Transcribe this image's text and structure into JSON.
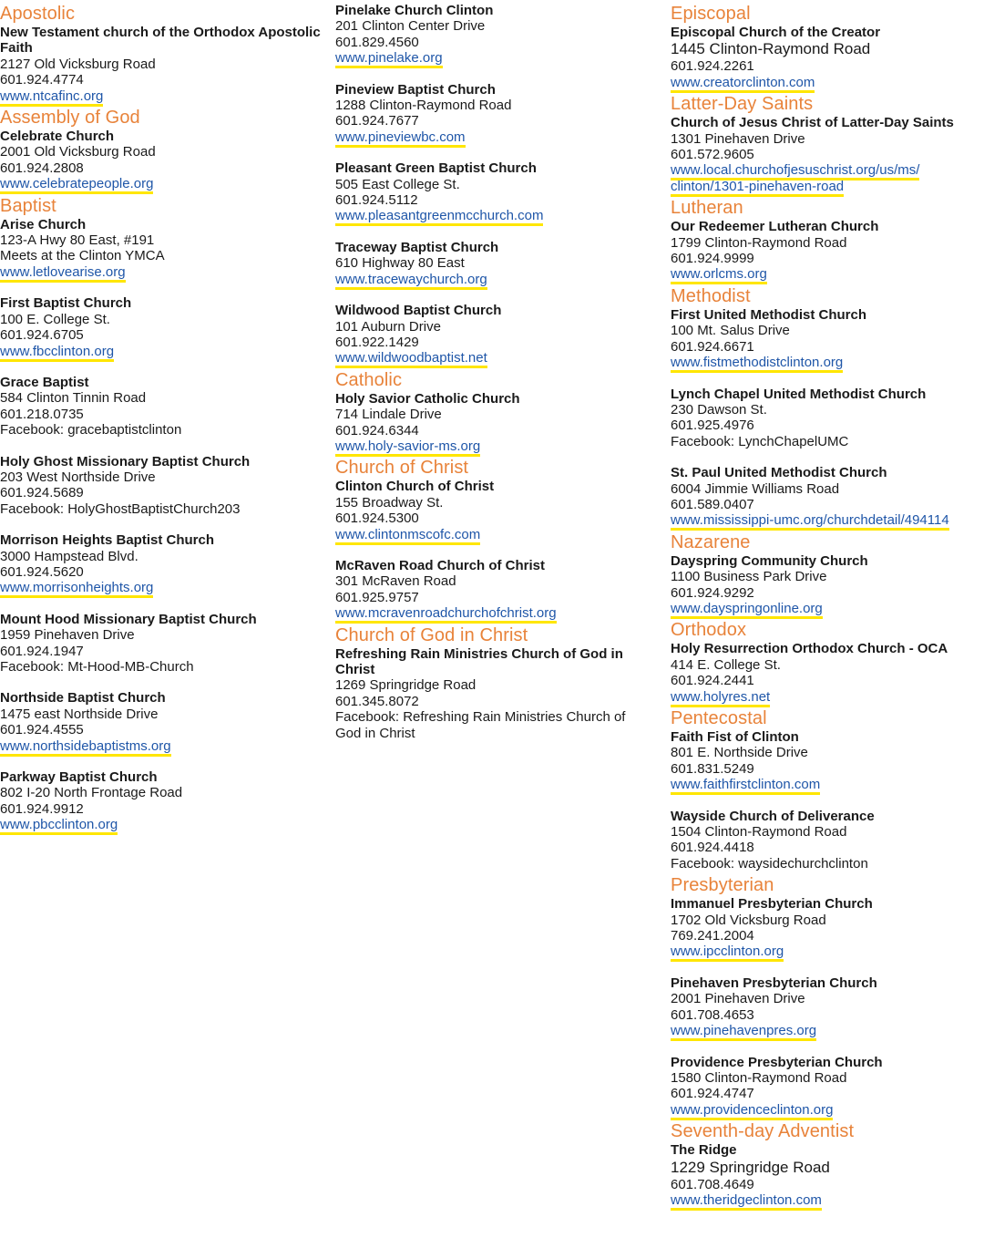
{
  "columns": [
    {
      "sections": [
        {
          "denomination": "Apostolic",
          "churches": [
            {
              "name": "New Testament church of the Orthodox Apostolic Faith",
              "lines": [
                "2127 Old Vicksburg Road",
                "601.924.4774"
              ],
              "link": "www.ntcafinc.org"
            }
          ]
        },
        {
          "denomination": "Assembly of God",
          "churches": [
            {
              "name": "Celebrate Church",
              "lines": [
                "2001 Old Vicksburg Road",
                "601.924.2808"
              ],
              "link": "www.celebratepeople.org"
            }
          ]
        },
        {
          "denomination": "Baptist",
          "churches": [
            {
              "name": "Arise Church",
              "lines": [
                "123-A Hwy 80 East, #191",
                "Meets at the Clinton YMCA"
              ],
              "link": "www.letlovearise.org"
            },
            {
              "name": "First Baptist Church",
              "lines": [
                "100 E. College St.",
                "601.924.6705"
              ],
              "link": "www.fbcclinton.org"
            },
            {
              "name": "Grace Baptist",
              "lines": [
                "584 Clinton Tinnin Road",
                "601.218.0735",
                "Facebook: gracebaptistclinton"
              ],
              "link": ""
            },
            {
              "name": "Holy Ghost Missionary Baptist Church",
              "lines": [
                "203 West Northside Drive",
                "601.924.5689",
                "Facebook:  HolyGhostBaptistChurch203"
              ],
              "link": ""
            },
            {
              "name": "Morrison Heights Baptist Church",
              "lines": [
                "3000 Hampstead Blvd.",
                "601.924.5620"
              ],
              "link": "www.morrisonheights.org"
            },
            {
              "name": "Mount Hood Missionary Baptist Church",
              "lines": [
                "1959 Pinehaven Drive",
                "601.924.1947",
                "Facebook:  Mt-Hood-MB-Church"
              ],
              "link": ""
            },
            {
              "name": "Northside Baptist Church",
              "lines": [
                "1475 east Northside Drive",
                "601.924.4555"
              ],
              "link": "www.northsidebaptistms.org"
            },
            {
              "name": "Parkway Baptist Church",
              "lines": [
                "802 I-20 North Frontage Road",
                "601.924.9912"
              ],
              "link": "www.pbcclinton.org"
            }
          ]
        }
      ]
    },
    {
      "sections": [
        {
          "denomination": "",
          "churches": [
            {
              "name": "Pinelake Church Clinton",
              "lines": [
                "201 Clinton Center Drive",
                "601.829.4560"
              ],
              "link": "www.pinelake.org"
            },
            {
              "name": "Pineview Baptist Church",
              "lines": [
                "1288 Clinton-Raymond Road",
                "601.924.7677"
              ],
              "link": "www.pineviewbc.com"
            },
            {
              "name": "Pleasant Green Baptist Church",
              "lines": [
                "505 East College St.",
                "601.924.5112"
              ],
              "link": "www.pleasantgreenmcchurch.com"
            },
            {
              "name": "Traceway Baptist Church",
              "lines": [
                "610 Highway 80 East"
              ],
              "link": "www.tracewaychurch.org"
            },
            {
              "name": "Wildwood Baptist Church",
              "lines": [
                "101 Auburn Drive",
                "601.922.1429"
              ],
              "link": "www.wildwoodbaptist.net"
            }
          ]
        },
        {
          "denomination": "Catholic",
          "churches": [
            {
              "name": "Holy Savior Catholic Church",
              "lines": [
                "714 Lindale Drive",
                "601.924.6344"
              ],
              "link": "www.holy-savior-ms.org"
            }
          ]
        },
        {
          "denomination": "Church of Christ",
          "churches": [
            {
              "name": "Clinton Church of Christ",
              "lines": [
                "155 Broadway St.",
                "601.924.5300"
              ],
              "link": "www.clintonmscofc.com"
            },
            {
              "name": "McRaven Road Church of Christ",
              "lines": [
                "301 McRaven Road",
                "601.925.9757"
              ],
              "link": "www.mcravenroadchurchofchrist.org"
            }
          ]
        },
        {
          "denomination": "Church of God in Christ",
          "churches": [
            {
              "name": "Refreshing Rain Ministries Church of God in Christ",
              "lines": [
                "1269 Springridge Road",
                "601.345.8072",
                "Facebook: Refreshing Rain Ministries Church of God in Christ"
              ],
              "link": ""
            }
          ]
        }
      ]
    },
    {
      "sections": [
        {
          "denomination": "Episcopal",
          "churches": [
            {
              "name": "Episcopal Church of the Creator",
              "lines": [
                "1445 Clinton-Raymond Road",
                "601.924.2261"
              ],
              "big_first": true,
              "link": "www.creatorclinton.com"
            }
          ]
        },
        {
          "denomination": "Latter-Day Saints",
          "churches": [
            {
              "name": "Church of Jesus Christ of Latter-Day Saints",
              "lines": [
                "1301 Pinehaven Drive",
                "601.572.9605"
              ],
              "link": "www.local.churchofjesuschrist.org/us/ms/ clinton/1301-pinehaven-road"
            }
          ]
        },
        {
          "denomination": "Lutheran",
          "churches": [
            {
              "name": "Our Redeemer Lutheran Church",
              "lines": [
                "1799 Clinton-Raymond Road",
                "601.924.9999"
              ],
              "link": "www.orlcms.org"
            }
          ]
        },
        {
          "denomination": "Methodist",
          "churches": [
            {
              "name": "First United Methodist Church",
              "lines": [
                "100 Mt. Salus Drive",
                "601.924.6671"
              ],
              "link": "www.fistmethodistclinton.org"
            },
            {
              "name": "Lynch Chapel United Methodist Church",
              "lines": [
                "230 Dawson St.",
                "601.925.4976",
                "Facebook:  LynchChapelUMC"
              ],
              "link": ""
            },
            {
              "name": "St. Paul United Methodist Church",
              "lines": [
                "6004 Jimmie Williams Road",
                "601.589.0407"
              ],
              "link": "www.mississippi-umc.org/churchdetail/494114"
            }
          ]
        },
        {
          "denomination": "Nazarene",
          "churches": [
            {
              "name": "Dayspring Community Church",
              "lines": [
                "1100 Business Park Drive",
                "601.924.9292"
              ],
              "link": "www.dayspringonline.org"
            }
          ]
        },
        {
          "denomination": "Orthodox",
          "churches": [
            {
              "name": "Holy Resurrection Orthodox Church - OCA",
              "lines": [
                "414 E. College St.",
                "601.924.2441"
              ],
              "link": "www.holyres.net"
            }
          ]
        },
        {
          "denomination": "Pentecostal",
          "churches": [
            {
              "name": "Faith Fist of Clinton",
              "lines": [
                "801 E. Northside Drive",
                "601.831.5249"
              ],
              "link": "www.faithfirstclinton.com"
            },
            {
              "name": "Wayside Church of Deliverance",
              "lines": [
                "1504 Clinton-Raymond Road",
                "601.924.4418",
                "Facebook:  waysidechurchclinton"
              ],
              "link": ""
            }
          ]
        },
        {
          "denomination": "Presbyterian",
          "churches": [
            {
              "name": "Immanuel Presbyterian Church",
              "lines": [
                "1702 Old Vicksburg Road",
                "769.241.2004"
              ],
              "link": "www.ipcclinton.org"
            },
            {
              "name": "Pinehaven Presbyterian Church",
              "lines": [
                "2001 Pinehaven Drive",
                "601.708.4653"
              ],
              "link": "www.pinehavenpres.org"
            },
            {
              "name": "Providence Presbyterian Church",
              "lines": [
                "1580 Clinton-Raymond Road",
                "601.924.4747"
              ],
              "link": "www.providenceclinton.org"
            }
          ]
        },
        {
          "denomination": "Seventh-day Adventist",
          "churches": [
            {
              "name": "The Ridge",
              "lines": [
                "1229 Springridge Road",
                "601.708.4649"
              ],
              "big_first": true,
              "link": "www.theridgeclinton.com"
            }
          ]
        }
      ]
    }
  ],
  "colors": {
    "denomination": "#e8833a",
    "link": "#1f56a8",
    "link_underline": "#ffe600"
  }
}
